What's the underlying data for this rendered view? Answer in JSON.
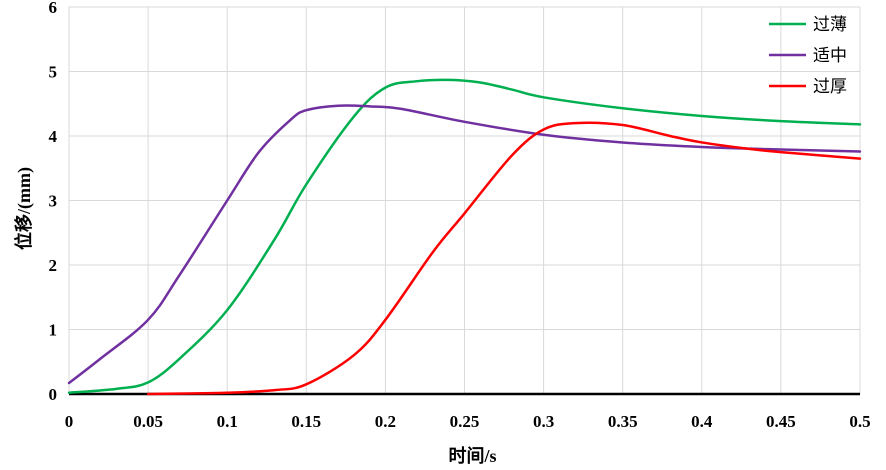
{
  "chart_data": {
    "type": "line",
    "title": "",
    "xlabel": "时间/s",
    "ylabel": "位移/(mm)",
    "xlim": [
      0,
      0.5
    ],
    "ylim": [
      0,
      6
    ],
    "x_ticks": [
      "0",
      "0.05",
      "0.1",
      "0.15",
      "0.2",
      "0.25",
      "0.3",
      "0.35",
      "0.4",
      "0.45",
      "0.5"
    ],
    "y_ticks": [
      "0",
      "1",
      "2",
      "3",
      "4",
      "5",
      "6"
    ],
    "grid": true,
    "legend_position": "top-right",
    "series": [
      {
        "name": "过薄",
        "color": "#00b050",
        "x": [
          0,
          0.03,
          0.05,
          0.07,
          0.1,
          0.13,
          0.15,
          0.18,
          0.2,
          0.22,
          0.24,
          0.26,
          0.28,
          0.3,
          0.35,
          0.4,
          0.45,
          0.5
        ],
        "y": [
          0.02,
          0.08,
          0.18,
          0.55,
          1.3,
          2.4,
          3.25,
          4.3,
          4.75,
          4.85,
          4.87,
          4.83,
          4.72,
          4.6,
          4.43,
          4.31,
          4.23,
          4.18
        ]
      },
      {
        "name": "适中",
        "color": "#7030a0",
        "x": [
          0,
          0.02,
          0.05,
          0.07,
          0.1,
          0.12,
          0.14,
          0.15,
          0.17,
          0.19,
          0.21,
          0.25,
          0.3,
          0.35,
          0.4,
          0.45,
          0.5
        ],
        "y": [
          0.17,
          0.55,
          1.15,
          1.85,
          3.0,
          3.75,
          4.25,
          4.4,
          4.47,
          4.46,
          4.42,
          4.22,
          4.02,
          3.9,
          3.83,
          3.79,
          3.76
        ]
      },
      {
        "name": "过厚",
        "color": "#ff0000",
        "x": [
          0.05,
          0.1,
          0.13,
          0.15,
          0.18,
          0.2,
          0.23,
          0.25,
          0.28,
          0.3,
          0.32,
          0.35,
          0.38,
          0.4,
          0.43,
          0.45,
          0.5
        ],
        "y": [
          0.0,
          0.02,
          0.06,
          0.15,
          0.6,
          1.15,
          2.2,
          2.8,
          3.7,
          4.1,
          4.2,
          4.17,
          4.0,
          3.9,
          3.8,
          3.75,
          3.65
        ]
      }
    ]
  }
}
